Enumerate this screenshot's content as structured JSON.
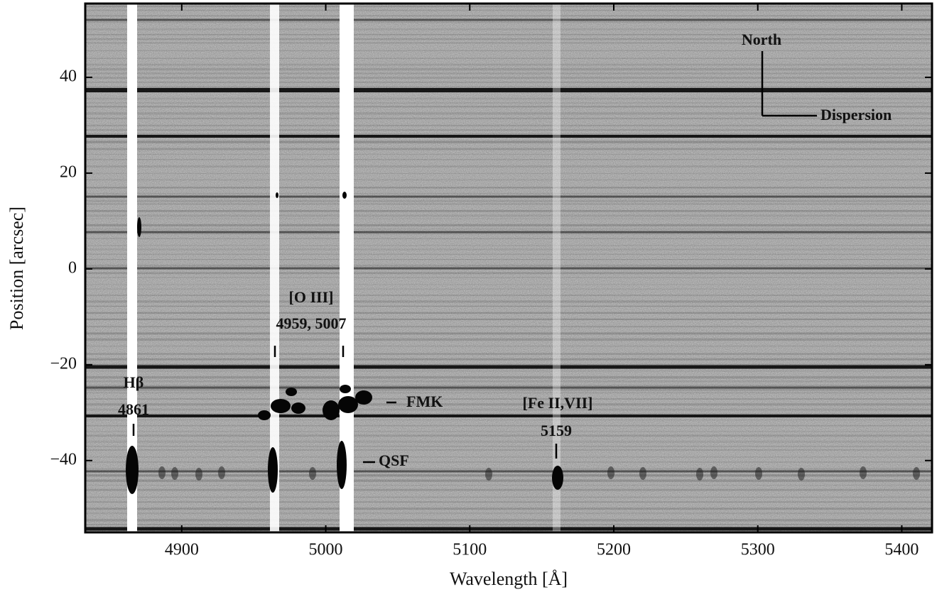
{
  "chart_data": {
    "type": "image",
    "xlabel": "Wavelength [Å]",
    "ylabel": "Position [arcsec]",
    "xlim": [
      4833,
      5421
    ],
    "ylim": [
      -55,
      55.4
    ],
    "xticks": [
      4900,
      5000,
      5100,
      5200,
      5300,
      5400
    ],
    "yticks": [
      {
        "value": -40,
        "label": "−40"
      },
      {
        "value": -20,
        "label": "−20"
      },
      0,
      20,
      40
    ],
    "annotations": [
      "North",
      "Dispersion",
      "[O III]",
      "4959, 5007",
      "Hβ",
      "4861",
      "FMK",
      "QSF",
      "[Fe II,VII]",
      "5159"
    ]
  }
}
